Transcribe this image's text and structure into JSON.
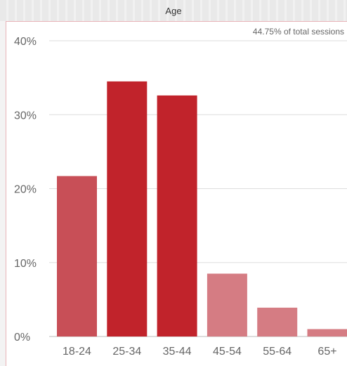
{
  "chart_title": "Age",
  "annotation": "44.75% of total sessions",
  "colors": {
    "strong": "#c1232b",
    "medium": "#c84f57",
    "light": "#d57c83",
    "grid": "#dddddd",
    "axis_text": "#666666"
  },
  "chart_data": {
    "type": "bar",
    "title": "Age",
    "categories": [
      "18-24",
      "25-34",
      "35-44",
      "45-54",
      "55-64",
      "65+"
    ],
    "values": [
      21.7,
      34.5,
      32.6,
      8.5,
      3.9,
      1.0
    ],
    "y_ticks": [
      "0%",
      "10%",
      "20%",
      "30%",
      "40%"
    ],
    "ylim": [
      0,
      40
    ],
    "unit": "%",
    "grid": true,
    "bar_shades": [
      "medium",
      "strong",
      "strong",
      "light",
      "light",
      "light"
    ]
  }
}
